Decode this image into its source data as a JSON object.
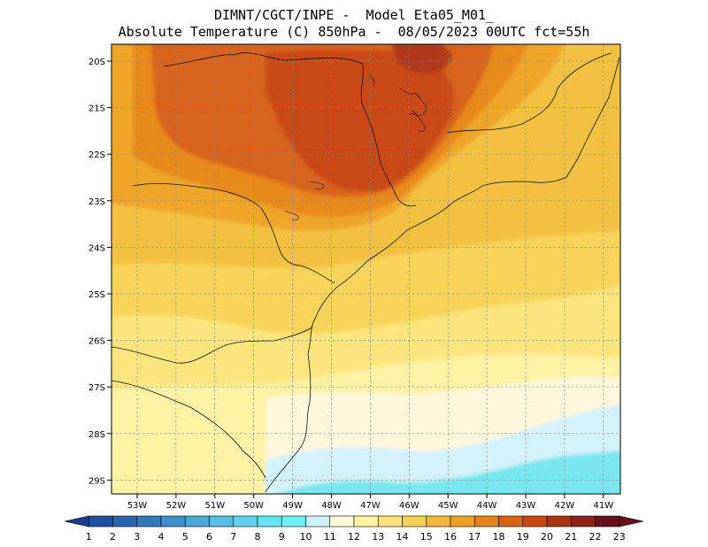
{
  "title": {
    "line1": "DIMNT/CGCT/INPE -  Model Eta05_M01_",
    "line2": "Absolute Temperature (C) 850hPa -  08/05/2023 00UTC fct=55h"
  },
  "axes": {
    "lat_labels": [
      "20S",
      "21S",
      "22S",
      "23S",
      "24S",
      "25S",
      "26S",
      "27S",
      "28S",
      "29S"
    ],
    "lon_labels": [
      "53W",
      "52W",
      "51W",
      "50W",
      "49W",
      "48W",
      "47W",
      "46W",
      "45W",
      "44W",
      "43W",
      "42W",
      "41W"
    ]
  },
  "colorbar": {
    "labels": [
      "1",
      "2",
      "3",
      "4",
      "5",
      "6",
      "7",
      "8",
      "9",
      "10",
      "11",
      "12",
      "13",
      "14",
      "15",
      "16",
      "17",
      "18",
      "19",
      "20",
      "21",
      "22",
      "23"
    ],
    "colors": [
      "#1a3a8c",
      "#1f4fa0",
      "#2a63ad",
      "#3478b8",
      "#3f8fc6",
      "#4aa8d4",
      "#56bfe0",
      "#5fd2ea",
      "#66e3f0",
      "#6cf2f6",
      "#cdf2fb",
      "#fffad8",
      "#fff2a0",
      "#fde37a",
      "#f6cf55",
      "#f1b73a",
      "#eea020",
      "#e5821a",
      "#da6212",
      "#c8480e",
      "#a93510",
      "#8b2316",
      "#6a0f1c"
    ]
  },
  "field": {
    "palette": {
      "t11": "#d4f2fb",
      "t12": "#fff7dc",
      "t13": "#fff2a6",
      "t14": "#fde57e",
      "t15": "#f8d45c",
      "t16": "#f3c142",
      "t17": "#efa52a",
      "t18": "#e8891e",
      "t19": "#d8631a",
      "t20": "#c84a12",
      "t21": "#b0381a",
      "cyan": "#79e6f0"
    }
  }
}
